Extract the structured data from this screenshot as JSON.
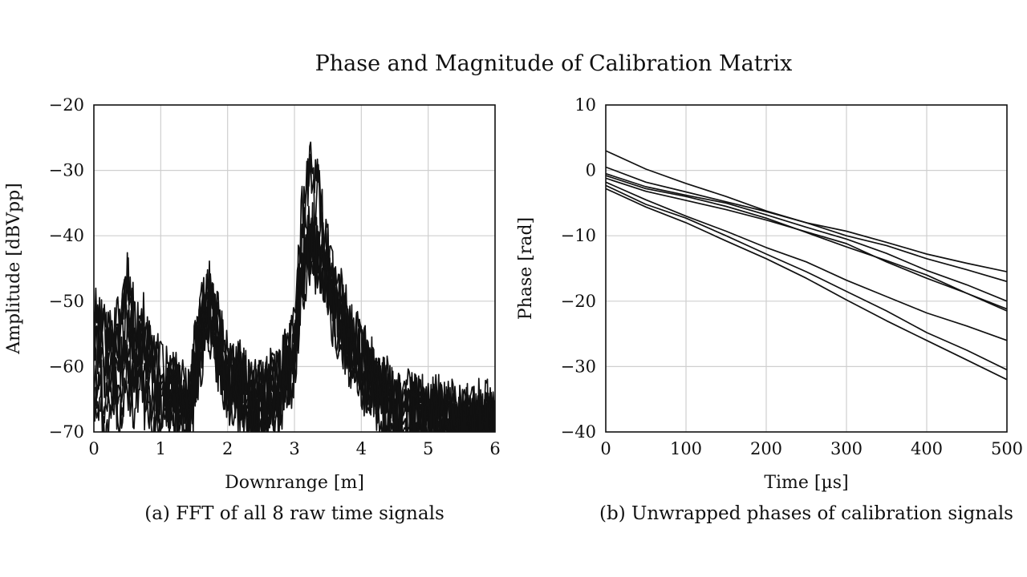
{
  "title": "Phase and Magnitude of Calibration Matrix",
  "chart_data": [
    {
      "type": "line",
      "caption": "(a) FFT of all 8 raw time signals",
      "xlabel": "Downrange [m]",
      "ylabel": "Amplitude [dBVpp]",
      "xlim": [
        0,
        6
      ],
      "ylim": [
        -70,
        -20
      ],
      "xticks": [
        0,
        1,
        2,
        3,
        4,
        5,
        6
      ],
      "yticks": [
        -70,
        -60,
        -50,
        -40,
        -30,
        -20
      ],
      "xtick_labels": [
        "0",
        "1",
        "2",
        "3",
        "4",
        "5",
        "6"
      ],
      "ytick_labels": [
        "−70",
        "−60",
        "−50",
        "−40",
        "−30",
        "−20"
      ],
      "grid": true,
      "line_color": "#111111",
      "peaks_note_free": true,
      "series": [
        {
          "x": [
            0,
            0.1,
            0.2,
            0.3,
            0.4,
            0.5,
            0.6,
            0.7,
            0.8,
            0.9,
            1.0,
            1.2,
            1.4,
            1.5,
            1.6,
            1.7,
            1.8,
            1.9,
            2.0,
            2.2,
            2.4,
            2.6,
            2.8,
            3.0,
            3.1,
            3.2,
            3.25,
            3.3,
            3.35,
            3.4,
            3.5,
            3.6,
            3.8,
            4.0,
            4.2,
            4.4,
            4.6,
            4.8,
            5.0,
            5.2,
            5.4,
            5.6,
            5.8,
            6.0
          ],
          "y": [
            -52,
            -53,
            -55,
            -54,
            -52,
            -45.5,
            -52,
            -51,
            -56,
            -58,
            -60,
            -62,
            -64,
            -57,
            -51,
            -47,
            -50,
            -55,
            -58,
            -60,
            -63,
            -62,
            -60,
            -54,
            -38,
            -30,
            -29.5,
            -34,
            -30,
            -35,
            -42,
            -47,
            -52,
            -56,
            -60,
            -63,
            -65,
            -64,
            -66,
            -65,
            -66,
            -67,
            -66,
            -66
          ]
        },
        {
          "x": [
            0,
            0.1,
            0.2,
            0.3,
            0.4,
            0.5,
            0.6,
            0.7,
            0.8,
            0.9,
            1.0,
            1.2,
            1.4,
            1.5,
            1.6,
            1.7,
            1.8,
            1.9,
            2.0,
            2.2,
            2.4,
            2.6,
            2.8,
            3.0,
            3.1,
            3.2,
            3.25,
            3.3,
            3.35,
            3.4,
            3.5,
            3.6,
            3.8,
            4.0,
            4.2,
            4.4,
            4.6,
            4.8,
            5.0,
            5.2,
            5.4,
            5.6,
            5.8,
            6.0
          ],
          "y": [
            -53,
            -54,
            -56,
            -55,
            -53,
            -47,
            -53,
            -52,
            -57,
            -59,
            -61,
            -62,
            -65,
            -58,
            -52,
            -48,
            -51,
            -56,
            -59,
            -61,
            -63,
            -62,
            -60,
            -55,
            -40,
            -31,
            -30,
            -35,
            -31,
            -36,
            -43,
            -48,
            -53,
            -57,
            -61,
            -64,
            -65,
            -65,
            -66,
            -66,
            -67,
            -67,
            -67,
            -67
          ]
        },
        {
          "x": [
            0,
            0.1,
            0.2,
            0.3,
            0.4,
            0.5,
            0.6,
            0.7,
            0.8,
            0.9,
            1.0,
            1.2,
            1.4,
            1.5,
            1.6,
            1.7,
            1.8,
            1.9,
            2.0,
            2.2,
            2.4,
            2.6,
            2.8,
            3.0,
            3.1,
            3.2,
            3.25,
            3.3,
            3.35,
            3.4,
            3.5,
            3.6,
            3.8,
            4.0,
            4.2,
            4.4,
            4.6,
            4.8,
            5.0,
            5.2,
            5.4,
            5.6,
            5.8,
            6.0
          ],
          "y": [
            -55,
            -56,
            -58,
            -57,
            -55,
            -50,
            -55,
            -53,
            -58,
            -60,
            -62,
            -63,
            -65,
            -60,
            -54,
            -49,
            -52,
            -57,
            -60,
            -62,
            -64,
            -63,
            -61,
            -56,
            -43,
            -38,
            -39,
            -40,
            -39,
            -40,
            -44,
            -49,
            -54,
            -58,
            -62,
            -64,
            -66,
            -65,
            -67,
            -66,
            -68,
            -67,
            -68,
            -68
          ]
        },
        {
          "x": [
            0,
            0.1,
            0.2,
            0.3,
            0.4,
            0.5,
            0.6,
            0.7,
            0.8,
            0.9,
            1.0,
            1.2,
            1.4,
            1.5,
            1.6,
            1.7,
            1.8,
            1.9,
            2.0,
            2.2,
            2.4,
            2.6,
            2.8,
            3.0,
            3.1,
            3.2,
            3.25,
            3.3,
            3.35,
            3.4,
            3.5,
            3.6,
            3.8,
            4.0,
            4.2,
            4.4,
            4.6,
            4.8,
            5.0,
            5.2,
            5.4,
            5.6,
            5.8,
            6.0
          ],
          "y": [
            -57,
            -58,
            -60,
            -59,
            -57,
            -53,
            -57,
            -55,
            -60,
            -62,
            -63,
            -64,
            -66,
            -61,
            -55,
            -50,
            -53,
            -58,
            -61,
            -63,
            -65,
            -64,
            -62,
            -57,
            -45,
            -40,
            -39.5,
            -41,
            -40,
            -42,
            -45,
            -50,
            -55,
            -59,
            -62,
            -65,
            -66,
            -66,
            -67,
            -67,
            -68,
            -68,
            -68,
            -68
          ]
        },
        {
          "x": [
            0,
            0.1,
            0.2,
            0.3,
            0.4,
            0.5,
            0.6,
            0.7,
            0.8,
            0.9,
            1.0,
            1.2,
            1.4,
            1.5,
            1.6,
            1.7,
            1.8,
            1.9,
            2.0,
            2.2,
            2.4,
            2.6,
            2.8,
            3.0,
            3.1,
            3.2,
            3.25,
            3.3,
            3.35,
            3.4,
            3.5,
            3.6,
            3.8,
            4.0,
            4.2,
            4.4,
            4.6,
            4.8,
            5.0,
            5.2,
            5.4,
            5.6,
            5.8,
            6.0
          ],
          "y": [
            -60,
            -61,
            -62,
            -61,
            -60,
            -56,
            -59,
            -57,
            -62,
            -64,
            -64,
            -65,
            -67,
            -62,
            -56,
            -51,
            -54,
            -59,
            -62,
            -64,
            -66,
            -65,
            -63,
            -58,
            -47,
            -41,
            -41,
            -42,
            -41,
            -43,
            -46,
            -51,
            -56,
            -60,
            -63,
            -66,
            -67,
            -67,
            -68,
            -68,
            -69,
            -69,
            -69,
            -69
          ]
        },
        {
          "x": [
            0,
            0.1,
            0.2,
            0.3,
            0.4,
            0.5,
            0.6,
            0.7,
            0.8,
            0.9,
            1.0,
            1.2,
            1.4,
            1.5,
            1.6,
            1.7,
            1.8,
            1.9,
            2.0,
            2.2,
            2.4,
            2.6,
            2.8,
            3.0,
            3.1,
            3.2,
            3.25,
            3.3,
            3.35,
            3.4,
            3.5,
            3.6,
            3.8,
            4.0,
            4.2,
            4.4,
            4.6,
            4.8,
            5.0,
            5.2,
            5.4,
            5.6,
            5.8,
            6.0
          ],
          "y": [
            -62,
            -63,
            -64,
            -63,
            -62,
            -58,
            -61,
            -59,
            -63,
            -65,
            -65,
            -66,
            -68,
            -63,
            -57,
            -52,
            -55,
            -60,
            -63,
            -65,
            -67,
            -66,
            -64,
            -59,
            -48,
            -42,
            -42,
            -43,
            -42,
            -44,
            -47,
            -52,
            -57,
            -61,
            -64,
            -66,
            -68,
            -67,
            -68,
            -69,
            -69,
            -69,
            -70,
            -70
          ]
        },
        {
          "x": [
            0,
            0.1,
            0.2,
            0.3,
            0.4,
            0.5,
            0.6,
            0.7,
            0.8,
            0.9,
            1.0,
            1.2,
            1.4,
            1.5,
            1.6,
            1.7,
            1.8,
            1.9,
            2.0,
            2.2,
            2.4,
            2.6,
            2.8,
            3.0,
            3.1,
            3.2,
            3.25,
            3.3,
            3.35,
            3.4,
            3.5,
            3.6,
            3.8,
            4.0,
            4.2,
            4.4,
            4.6,
            4.8,
            5.0,
            5.2,
            5.4,
            5.6,
            5.8,
            6.0
          ],
          "y": [
            -65,
            -66,
            -67,
            -66,
            -65,
            -61,
            -63,
            -61,
            -65,
            -67,
            -66,
            -67,
            -69,
            -64,
            -58,
            -53,
            -56,
            -61,
            -64,
            -66,
            -68,
            -67,
            -65,
            -60,
            -49,
            -43,
            -43,
            -44,
            -43,
            -45,
            -48,
            -53,
            -58,
            -62,
            -65,
            -67,
            -69,
            -68,
            -69,
            -69,
            -70,
            -70,
            -70,
            -70
          ]
        },
        {
          "x": [
            0,
            0.1,
            0.2,
            0.3,
            0.4,
            0.5,
            0.6,
            0.7,
            0.8,
            0.9,
            1.0,
            1.2,
            1.4,
            1.5,
            1.6,
            1.7,
            1.8,
            1.9,
            2.0,
            2.2,
            2.4,
            2.6,
            2.8,
            3.0,
            3.1,
            3.2,
            3.25,
            3.3,
            3.35,
            3.4,
            3.5,
            3.6,
            3.8,
            4.0,
            4.2,
            4.4,
            4.6,
            4.8,
            5.0,
            5.2,
            5.4,
            5.6,
            5.8,
            6.0
          ],
          "y": [
            -68,
            -69,
            -69,
            -68,
            -68,
            -64,
            -66,
            -63,
            -67,
            -68,
            -68,
            -68,
            -70,
            -65,
            -59,
            -54,
            -57,
            -62,
            -65,
            -67,
            -69,
            -68,
            -66,
            -61,
            -50,
            -44,
            -44,
            -45,
            -44,
            -46,
            -49,
            -54,
            -59,
            -63,
            -66,
            -68,
            -70,
            -69,
            -70,
            -70,
            -70,
            -70,
            -70,
            -70
          ]
        }
      ]
    },
    {
      "type": "line",
      "caption": "(b) Unwrapped phases of calibration signals",
      "xlabel": "Time [µs]",
      "ylabel": "Phase [rad]",
      "xlim": [
        0,
        500
      ],
      "ylim": [
        -40,
        10
      ],
      "xticks": [
        0,
        100,
        200,
        300,
        400,
        500
      ],
      "yticks": [
        -40,
        -30,
        -20,
        -10,
        0,
        10
      ],
      "xtick_labels": [
        "0",
        "100",
        "200",
        "300",
        "400",
        "500"
      ],
      "ytick_labels": [
        "−40",
        "−30",
        "−20",
        "−10",
        "0",
        "10"
      ],
      "grid": true,
      "line_color": "#111111",
      "series": [
        {
          "x": [
            0,
            50,
            100,
            150,
            200,
            250,
            300,
            350,
            400,
            450,
            500
          ],
          "y": [
            3.0,
            0.2,
            -2.0,
            -4.0,
            -6.2,
            -8.0,
            -9.3,
            -11.0,
            -12.8,
            -14.2,
            -15.5
          ]
        },
        {
          "x": [
            0,
            50,
            100,
            150,
            200,
            250,
            300,
            350,
            400,
            450,
            500
          ],
          "y": [
            0.5,
            -1.8,
            -3.3,
            -4.8,
            -6.3,
            -8.0,
            -10.0,
            -11.5,
            -13.5,
            -15.2,
            -17.0
          ]
        },
        {
          "x": [
            0,
            50,
            100,
            150,
            200,
            250,
            300,
            350,
            400,
            450,
            500
          ],
          "y": [
            -0.5,
            -2.5,
            -3.8,
            -5.0,
            -6.8,
            -8.7,
            -10.5,
            -12.7,
            -15.3,
            -17.5,
            -20.0
          ]
        },
        {
          "x": [
            0,
            50,
            100,
            150,
            200,
            250,
            300,
            350,
            400,
            450,
            500
          ],
          "y": [
            -0.8,
            -2.8,
            -4.0,
            -5.5,
            -7.3,
            -9.5,
            -11.7,
            -13.8,
            -16.0,
            -18.8,
            -21.2
          ]
        },
        {
          "x": [
            0,
            50,
            100,
            150,
            200,
            250,
            300,
            350,
            400,
            450,
            500
          ],
          "y": [
            -1.2,
            -3.2,
            -4.6,
            -6.0,
            -7.6,
            -9.4,
            -11.2,
            -14.0,
            -16.5,
            -18.8,
            -21.5
          ]
        },
        {
          "x": [
            0,
            50,
            100,
            150,
            200,
            250,
            300,
            350,
            400,
            450,
            500
          ],
          "y": [
            -1.8,
            -4.5,
            -7.0,
            -9.3,
            -11.8,
            -14.0,
            -16.8,
            -19.3,
            -21.8,
            -23.8,
            -26.0
          ]
        },
        {
          "x": [
            0,
            50,
            100,
            150,
            200,
            250,
            300,
            350,
            400,
            450,
            500
          ],
          "y": [
            -2.3,
            -5.2,
            -7.3,
            -10.0,
            -12.8,
            -15.5,
            -18.5,
            -21.5,
            -24.8,
            -27.5,
            -30.5
          ]
        },
        {
          "x": [
            0,
            50,
            100,
            150,
            200,
            250,
            300,
            350,
            400,
            450,
            500
          ],
          "y": [
            -2.8,
            -5.6,
            -8.0,
            -10.8,
            -13.5,
            -16.5,
            -19.8,
            -23.0,
            -26.0,
            -29.0,
            -32.0
          ]
        }
      ]
    }
  ]
}
